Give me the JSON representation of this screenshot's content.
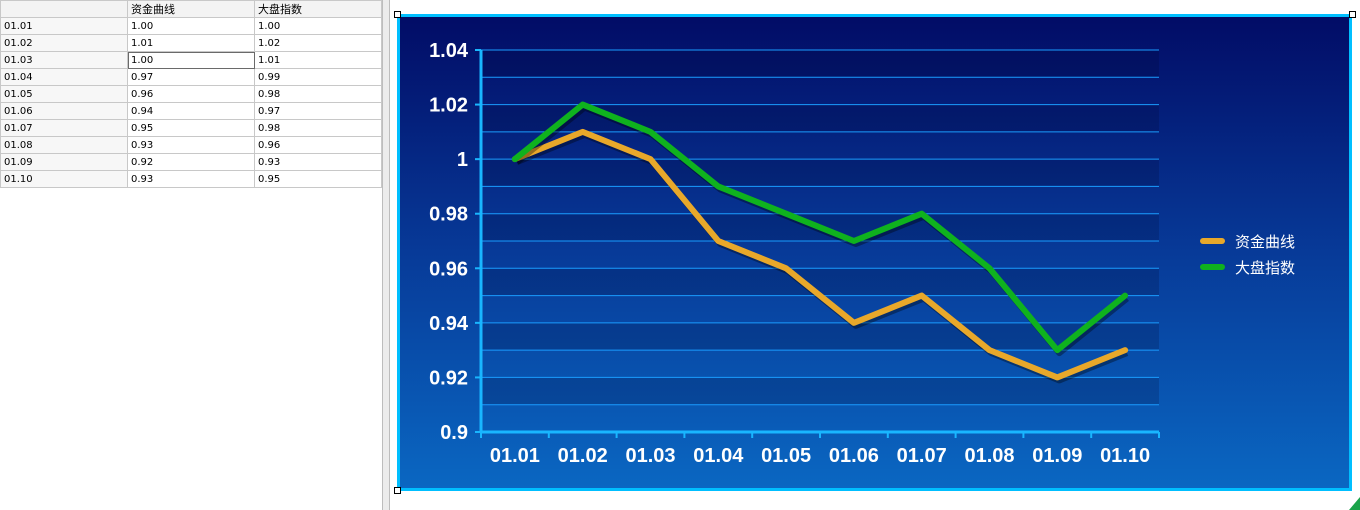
{
  "sheet": {
    "headers": [
      "",
      "资金曲线",
      "大盘指数"
    ],
    "rows": [
      [
        "01.01",
        "1.00",
        "1.00"
      ],
      [
        "01.02",
        "1.01",
        "1.02"
      ],
      [
        "01.03",
        "1.00",
        "1.01"
      ],
      [
        "01.04",
        "0.97",
        "0.99"
      ],
      [
        "01.05",
        "0.96",
        "0.98"
      ],
      [
        "01.06",
        "0.94",
        "0.97"
      ],
      [
        "01.07",
        "0.95",
        "0.98"
      ],
      [
        "01.08",
        "0.93",
        "0.96"
      ],
      [
        "01.09",
        "0.92",
        "0.93"
      ],
      [
        "01.10",
        "0.93",
        "0.95"
      ]
    ]
  },
  "chart_data": {
    "type": "line",
    "x": [
      "01.01",
      "01.02",
      "01.03",
      "01.04",
      "01.05",
      "01.06",
      "01.07",
      "01.08",
      "01.09",
      "01.10"
    ],
    "series": [
      {
        "name": "资金曲线",
        "color": "#e8a82a",
        "values": [
          1.0,
          1.01,
          1.0,
          0.97,
          0.96,
          0.94,
          0.95,
          0.93,
          0.92,
          0.93
        ]
      },
      {
        "name": "大盘指数",
        "color": "#0fb21e",
        "values": [
          1.0,
          1.02,
          1.01,
          0.99,
          0.98,
          0.97,
          0.98,
          0.96,
          0.93,
          0.95
        ]
      }
    ],
    "y_ticks": [
      "0.9",
      "0.92",
      "0.94",
      "0.96",
      "0.98",
      "1",
      "1.02",
      "1.04"
    ],
    "ylim": [
      0.9,
      1.04
    ],
    "grid": true,
    "legend_position": "right",
    "colors": {
      "background_top": "#020c66",
      "background_bottom": "#0a67c2",
      "axis": "#19b6ff",
      "gridline": "#1a9cff"
    }
  }
}
